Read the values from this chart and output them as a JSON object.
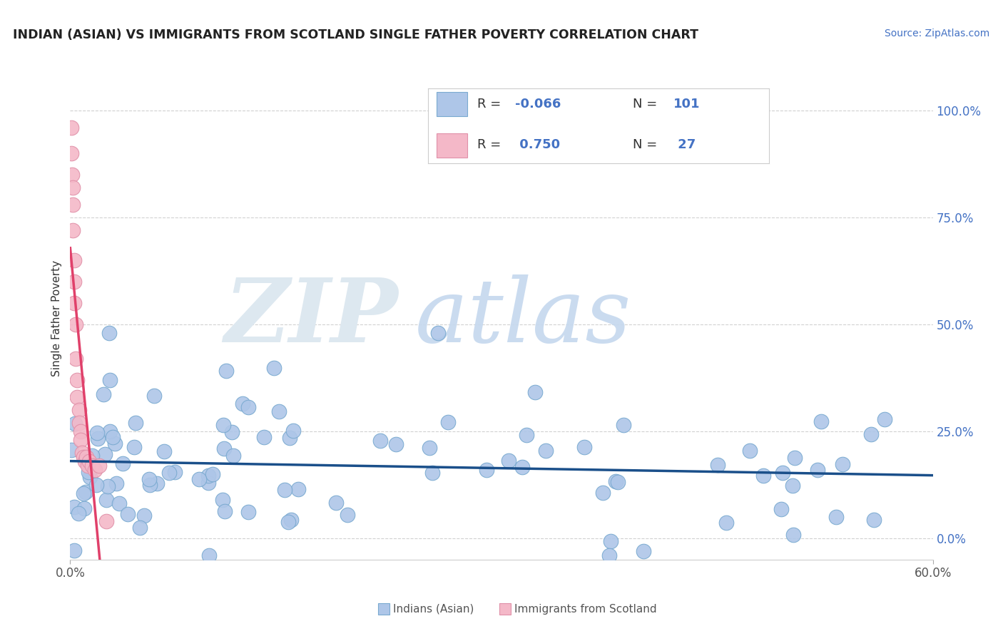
{
  "title": "INDIAN (ASIAN) VS IMMIGRANTS FROM SCOTLAND SINGLE FATHER POVERTY CORRELATION CHART",
  "source": "Source: ZipAtlas.com",
  "ylabel": "Single Father Poverty",
  "y_tick_labels": [
    "0.0%",
    "25.0%",
    "50.0%",
    "75.0%",
    "100.0%"
  ],
  "y_tick_values": [
    0.0,
    0.25,
    0.5,
    0.75,
    1.0
  ],
  "x_lim": [
    0.0,
    0.6
  ],
  "y_lim": [
    -0.05,
    1.08
  ],
  "legend1_r": "-0.066",
  "legend1_n": "101",
  "legend2_r": "0.750",
  "legend2_n": "27",
  "blue_scatter_color": "#aec6e8",
  "pink_scatter_color": "#f4b8c8",
  "blue_edge_color": "#7aaad0",
  "pink_edge_color": "#e090a8",
  "blue_line_color": "#1a4f8a",
  "pink_line_color": "#e0406a",
  "watermark_zip_color": "#dde8f0",
  "watermark_atlas_color": "#c5d8ee",
  "title_color": "#222222",
  "source_color": "#4472c4",
  "ytick_color": "#4472c4",
  "xtick_color": "#555555",
  "ylabel_color": "#333333",
  "grid_color": "#cccccc",
  "legend_edge_color": "#cccccc",
  "bottom_legend_text_color": "#555555"
}
